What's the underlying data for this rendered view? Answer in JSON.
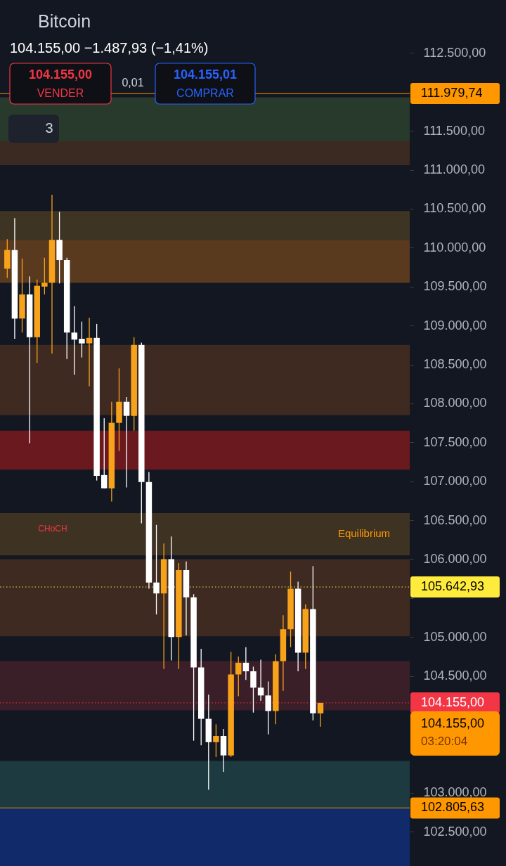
{
  "chart_data": {
    "type": "candlestick",
    "title": "Bitcoin",
    "subtitle": "104.155,00  −1.487,93 (−1,41%)",
    "categories": [
      null,
      null,
      null,
      null,
      null,
      null,
      null,
      null,
      null,
      null,
      null,
      null,
      null,
      null,
      null,
      null,
      null,
      null,
      null,
      null,
      null,
      null,
      null,
      null,
      null,
      null,
      null,
      null,
      null,
      null,
      null,
      null,
      null,
      null,
      null,
      null,
      null,
      null,
      null,
      null,
      null,
      null,
      null,
      null,
      null,
      null,
      null,
      null,
      null,
      null,
      null,
      null,
      null,
      null
    ],
    "ohlc": [
      [
        109730,
        110110,
        109610,
        109970
      ],
      [
        109970,
        110380,
        108830,
        109090
      ],
      [
        109090,
        109860,
        108910,
        109400
      ],
      [
        109400,
        109630,
        107490,
        108850
      ],
      [
        108850,
        109590,
        108520,
        109510
      ],
      [
        109500,
        109870,
        109400,
        109550
      ],
      [
        109550,
        110680,
        108640,
        110100
      ],
      [
        110100,
        110460,
        109540,
        109840
      ],
      [
        109840,
        109870,
        108570,
        108910
      ],
      [
        108910,
        109250,
        108370,
        108820
      ],
      [
        108830,
        109050,
        108590,
        108770
      ],
      [
        108770,
        109100,
        108220,
        108840
      ],
      [
        108840,
        109020,
        107010,
        107070
      ],
      [
        107080,
        107810,
        106910,
        106910
      ],
      [
        106910,
        108020,
        106740,
        107750
      ],
      [
        107750,
        108450,
        107390,
        108020
      ],
      [
        108020,
        108080,
        106920,
        107840
      ],
      [
        107840,
        108850,
        107650,
        108750
      ],
      [
        108750,
        108780,
        106460,
        106990
      ],
      [
        106990,
        107120,
        105620,
        105700
      ],
      [
        105700,
        106440,
        105290,
        105560
      ],
      [
        105560,
        106200,
        104590,
        106000
      ],
      [
        106000,
        106290,
        104700,
        105000
      ],
      [
        105000,
        105950,
        104590,
        105860
      ],
      [
        105860,
        105970,
        105020,
        105510
      ],
      [
        105510,
        105550,
        103670,
        104610
      ],
      [
        104610,
        104850,
        103610,
        103950
      ],
      [
        103950,
        104260,
        103040,
        103650
      ],
      [
        103650,
        103880,
        103460,
        103730
      ],
      [
        103730,
        103820,
        103270,
        103480
      ],
      [
        103480,
        104810,
        103460,
        104520
      ],
      [
        104520,
        104750,
        104240,
        104670
      ],
      [
        104670,
        104870,
        104450,
        104560
      ],
      [
        104560,
        104620,
        104030,
        104350
      ],
      [
        104350,
        104710,
        104180,
        104250
      ],
      [
        104250,
        104430,
        103750,
        104050
      ],
      [
        104050,
        104780,
        103880,
        104690
      ],
      [
        104690,
        105280,
        104310,
        105100
      ],
      [
        105100,
        105840,
        104870,
        105620
      ],
      [
        105620,
        105710,
        104560,
        104800
      ],
      [
        104800,
        105420,
        104590,
        105360
      ],
      [
        105360,
        105910,
        103930,
        104020
      ],
      [
        104020,
        104155,
        103850,
        104155
      ],
      null,
      null,
      null,
      null,
      null,
      null,
      null,
      null,
      null,
      null,
      null
    ],
    "colors": [
      "#f7a21b",
      "#ffffff",
      "#f7a21b",
      "#ffffff",
      "#f7a21b",
      "#f7a21b",
      "#f7a21b",
      "#ffffff",
      "#ffffff",
      "#ffffff",
      "#ffffff",
      "#f7a21b",
      "#ffffff",
      "#ffffff",
      "#f7a21b",
      "#f7a21b",
      "#ffffff",
      "#f7a21b",
      "#ffffff",
      "#ffffff",
      "#ffffff",
      "#f7a21b",
      "#ffffff",
      "#f7a21b",
      "#ffffff",
      "#ffffff",
      "#ffffff",
      "#ffffff",
      "#f7a21b",
      "#ffffff",
      "#f7a21b",
      "#f7a21b",
      "#ffffff",
      "#ffffff",
      "#ffffff",
      "#ffffff",
      "#f7a21b",
      "#f7a21b",
      "#f7a21b",
      "#ffffff",
      "#f7a21b",
      "#ffffff",
      "#f7a21b",
      null,
      null,
      null,
      null,
      null,
      null,
      null,
      null,
      null,
      null,
      null
    ],
    "ylim": [
      102060,
      113180
    ],
    "yticks": [
      {
        "value": 102500,
        "label": "102.500,00"
      },
      {
        "value": 103000,
        "label": "103.000,00"
      },
      {
        "value": 103500,
        "label": null
      },
      {
        "value": 104000,
        "label": null
      },
      {
        "value": 104500,
        "label": "104.500,00"
      },
      {
        "value": 105000,
        "label": "105.000,00"
      },
      {
        "value": 105500,
        "label": null
      },
      {
        "value": 106000,
        "label": "106.000,00"
      },
      {
        "value": 106500,
        "label": "106.500,00"
      },
      {
        "value": 107000,
        "label": "107.000,00"
      },
      {
        "value": 107500,
        "label": "107.500,00"
      },
      {
        "value": 108000,
        "label": "108.000,00"
      },
      {
        "value": 108500,
        "label": "108.500,00"
      },
      {
        "value": 109000,
        "label": "109.000,00"
      },
      {
        "value": 109500,
        "label": "109.500,00"
      },
      {
        "value": 110000,
        "label": "110.000,00"
      },
      {
        "value": 110500,
        "label": "110.500,00"
      },
      {
        "value": 111000,
        "label": "111.000,00"
      },
      {
        "value": 111500,
        "label": "111.500,00"
      },
      {
        "value": 112000,
        "label": null
      },
      {
        "value": 112500,
        "label": "112.500,00"
      }
    ],
    "bands": [
      {
        "axis": "y",
        "from": 111060,
        "to": 111640,
        "color": "#3b2a22"
      },
      {
        "axis": "y",
        "from": 111370,
        "to": 111930,
        "color": "#283a2c"
      },
      {
        "axis": "y",
        "from": 110100,
        "to": 110470,
        "color": "#3d3424"
      },
      {
        "axis": "y",
        "from": 109550,
        "to": 110100,
        "color": "#5a3a1e"
      },
      {
        "axis": "y",
        "from": 107850,
        "to": 108750,
        "color": "#3f2a22"
      },
      {
        "axis": "y",
        "from": 107150,
        "to": 107650,
        "color": "#6a1a1e"
      },
      {
        "axis": "y",
        "from": 106050,
        "to": 106590,
        "color": "#3e3222"
      },
      {
        "axis": "y",
        "from": 105010,
        "to": 106000,
        "color": "#3f2a22"
      },
      {
        "axis": "y",
        "from": 104060,
        "to": 104690,
        "color": "#3a1f28"
      },
      {
        "axis": "y",
        "from": 102800,
        "to": 103410,
        "color": "#1c3a40"
      },
      {
        "axis": "y",
        "from": 102060,
        "to": 102800,
        "color": "#112a6a"
      }
    ],
    "ref_lines": [
      {
        "axis": "y",
        "value": 111979.74,
        "label": "111.979,74",
        "color": "#ff9800"
      },
      {
        "axis": "y",
        "value": 105642.93,
        "label": "105.642,93",
        "color": "#ffeb3b",
        "line_style": "dotted"
      },
      {
        "axis": "y",
        "value": 104155,
        "label": "104.155,00",
        "color": "#f23645",
        "line_style": "dotted"
      },
      {
        "axis": "y",
        "value": 102805.63,
        "label": "102.805,63",
        "color": "#ff9800"
      }
    ],
    "annotations": [
      "104.155,00",
      "VENDER",
      "0,01",
      "104.155,01",
      "COMPRAR",
      "3",
      "CHoCH",
      "Equilibrium",
      "104.155,00",
      "03:20:04"
    ],
    "grid": false
  }
}
